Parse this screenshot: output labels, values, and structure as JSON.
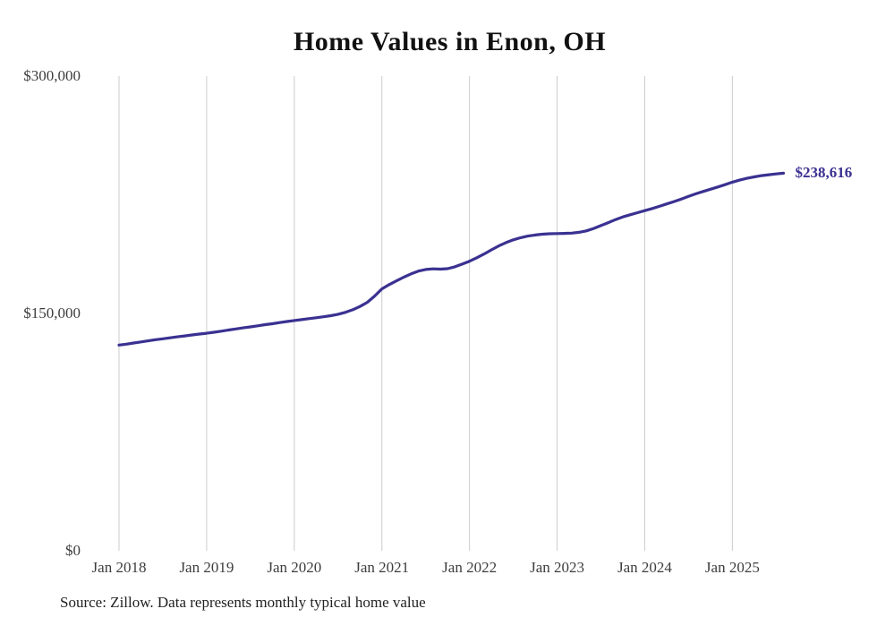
{
  "title": "Home Values in Enon, OH",
  "source_note": "Source: Zillow. Data represents monthly typical home value",
  "end_label": "$238,616",
  "colors": {
    "line": "#3a3191",
    "grid": "#cccccc",
    "tick_text": "#3d3d3d",
    "title_text": "#111111",
    "end_label_text": "#3a3191"
  },
  "chart_data": {
    "type": "line",
    "title": "Home Values in Enon, OH",
    "xlabel": "",
    "ylabel": "",
    "ylim": [
      0,
      300000
    ],
    "grid": "vertical-only",
    "legend": "none",
    "end_annotation": "$238,616",
    "y_ticks": [
      {
        "label": "$300,000",
        "value": 300000
      },
      {
        "label": "$150,000",
        "value": 150000
      },
      {
        "label": "$0",
        "value": 0
      }
    ],
    "x_tick_labels": [
      "Jan 2018",
      "Jan 2019",
      "Jan 2020",
      "Jan 2021",
      "Jan 2022",
      "Jan 2023",
      "Jan 2024",
      "Jan 2025"
    ],
    "x_tick_month_indices": [
      0,
      12,
      24,
      36,
      48,
      60,
      72,
      84
    ],
    "x": [
      "2018-01",
      "2018-02",
      "2018-03",
      "2018-04",
      "2018-05",
      "2018-06",
      "2018-07",
      "2018-08",
      "2018-09",
      "2018-10",
      "2018-11",
      "2018-12",
      "2019-01",
      "2019-02",
      "2019-03",
      "2019-04",
      "2019-05",
      "2019-06",
      "2019-07",
      "2019-08",
      "2019-09",
      "2019-10",
      "2019-11",
      "2019-12",
      "2020-01",
      "2020-02",
      "2020-03",
      "2020-04",
      "2020-05",
      "2020-06",
      "2020-07",
      "2020-08",
      "2020-09",
      "2020-10",
      "2020-11",
      "2020-12",
      "2021-01",
      "2021-02",
      "2021-03",
      "2021-04",
      "2021-05",
      "2021-06",
      "2021-07",
      "2021-08",
      "2021-09",
      "2021-10",
      "2021-11",
      "2021-12",
      "2022-01",
      "2022-02",
      "2022-03",
      "2022-04",
      "2022-05",
      "2022-06",
      "2022-07",
      "2022-08",
      "2022-09",
      "2022-10",
      "2022-11",
      "2022-12",
      "2023-01",
      "2023-02",
      "2023-03",
      "2023-04",
      "2023-05",
      "2023-06",
      "2023-07",
      "2023-08",
      "2023-09",
      "2023-10",
      "2023-11",
      "2023-12",
      "2024-01",
      "2024-02",
      "2024-03",
      "2024-04",
      "2024-05",
      "2024-06",
      "2024-07",
      "2024-08",
      "2024-09",
      "2024-10",
      "2024-11",
      "2024-12",
      "2025-01",
      "2025-02",
      "2025-03",
      "2025-04",
      "2025-05",
      "2025-06",
      "2025-07",
      "2025-08"
    ],
    "values": [
      130000,
      130600,
      131300,
      132000,
      132700,
      133400,
      134000,
      134600,
      135200,
      135800,
      136400,
      137000,
      137500,
      138100,
      138800,
      139500,
      140200,
      140900,
      141500,
      142200,
      142900,
      143500,
      144200,
      144900,
      145500,
      146100,
      146700,
      147300,
      147900,
      148600,
      149500,
      150700,
      152300,
      154400,
      157000,
      161000,
      165500,
      168200,
      170600,
      172900,
      175000,
      176800,
      177800,
      178200,
      178000,
      178300,
      179500,
      181200,
      183000,
      185200,
      187600,
      190200,
      192700,
      194800,
      196500,
      197900,
      198900,
      199600,
      200100,
      200400,
      200500,
      200600,
      200800,
      201300,
      202200,
      203700,
      205500,
      207400,
      209300,
      211000,
      212400,
      213700,
      215000,
      216300,
      217700,
      219200,
      220700,
      222300,
      224000,
      225600,
      227100,
      228500,
      229900,
      231400,
      233000,
      234300,
      235400,
      236300,
      237100,
      237700,
      238200,
      238616
    ]
  }
}
